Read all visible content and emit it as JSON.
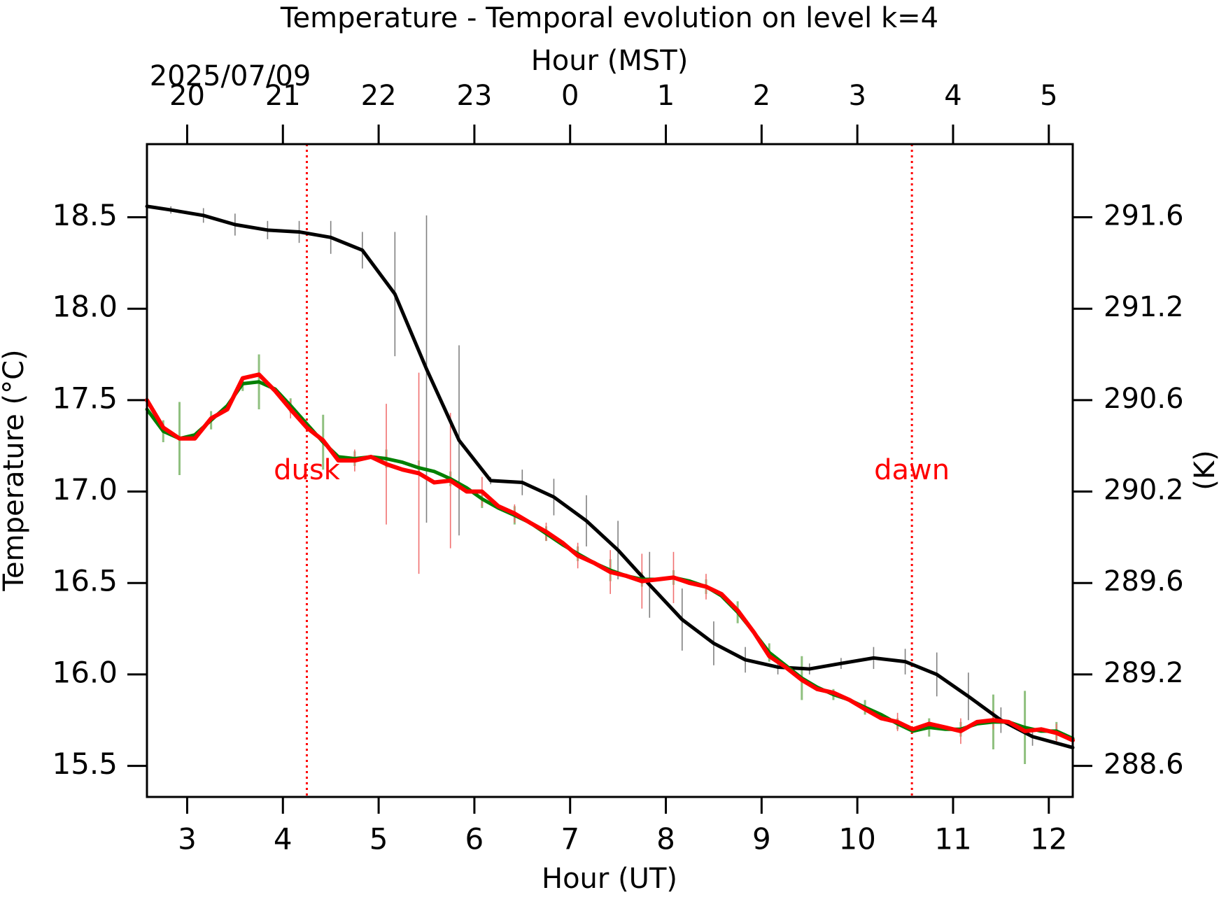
{
  "chart_data": {
    "type": "line",
    "title": "Temperature - Temporal evolution on level k=4",
    "xlabel": "Hour (UT)",
    "x2label": "Hour (MST)",
    "ylabel": "Temperature (°C)",
    "y2label": "(K)",
    "date_annotation": "2025/07/09",
    "xlim": [
      2.58,
      12.25
    ],
    "xticks": [
      3,
      4,
      5,
      6,
      7,
      8,
      9,
      10,
      11,
      12
    ],
    "x2lim": [
      19.58,
      29.25
    ],
    "x2ticks": [
      20,
      21,
      22,
      23,
      {
        "value": 24,
        "label": "0"
      },
      {
        "value": 25,
        "label": "1"
      },
      {
        "value": 26,
        "label": "2"
      },
      {
        "value": 27,
        "label": "3"
      },
      {
        "value": 28,
        "label": "4"
      },
      {
        "value": 29,
        "label": "5"
      }
    ],
    "ylim": [
      15.33,
      18.9
    ],
    "yticks": [
      15.5,
      16.0,
      16.5,
      17.0,
      17.5,
      18.0,
      18.5
    ],
    "ytick_labels": [
      "15.5",
      "16.0",
      "16.5",
      "17.0",
      "17.5",
      "18.0",
      "18.5"
    ],
    "y2lim": [
      288.48,
      292.05
    ],
    "y2ticks": [
      {
        "value": 288.65,
        "label": "288.6"
      },
      {
        "value": 289.15,
        "label": "289.2"
      },
      {
        "value": 289.65,
        "label": "289.6"
      },
      {
        "value": 290.15,
        "label": "290.2"
      },
      {
        "value": 290.65,
        "label": "290.6"
      },
      {
        "value": 291.15,
        "label": "291.2"
      },
      {
        "value": 291.65,
        "label": "291.6"
      }
    ],
    "vlines": [
      {
        "x": 4.25,
        "label": "dusk",
        "label_y": 17.11,
        "color": "#ff0000"
      },
      {
        "x": 10.57,
        "label": "dawn",
        "label_y": 17.11,
        "color": "#ff0000"
      }
    ],
    "series": [
      {
        "color": "#000000",
        "error_color": "#808080",
        "width": 5,
        "x": [
          2.58,
          2.83,
          3.17,
          3.5,
          3.84,
          4.17,
          4.5,
          4.83,
          5.17,
          5.5,
          5.84,
          6.17,
          6.5,
          6.83,
          7.17,
          7.5,
          7.83,
          8.17,
          8.5,
          8.83,
          9.17,
          9.5,
          9.83,
          10.17,
          10.5,
          10.83,
          11.16,
          11.5,
          11.83,
          12.25
        ],
        "values": [
          18.56,
          18.54,
          18.51,
          18.46,
          18.43,
          18.42,
          18.39,
          18.32,
          18.08,
          17.67,
          17.28,
          17.06,
          17.05,
          16.97,
          16.84,
          16.68,
          16.49,
          16.3,
          16.17,
          16.08,
          16.04,
          16.03,
          16.06,
          16.09,
          16.07,
          16.0,
          15.88,
          15.75,
          15.66,
          15.6
        ],
        "errors": [
          null,
          0.02,
          0.04,
          0.06,
          0.05,
          0.06,
          0.09,
          0.1,
          0.34,
          0.84,
          0.52,
          0.02,
          0.07,
          0.1,
          0.14,
          0.16,
          0.18,
          0.17,
          0.12,
          0.07,
          0.04,
          0.03,
          0.03,
          0.06,
          0.07,
          0.12,
          0.13,
          0.07,
          0.05,
          null
        ]
      },
      {
        "color": "#008000",
        "error_color": "#8fc07f",
        "width": 5,
        "x": [
          2.58,
          2.75,
          2.92,
          3.08,
          3.25,
          3.42,
          3.58,
          3.75,
          3.92,
          4.08,
          4.25,
          4.42,
          4.58,
          4.75,
          4.92,
          5.08,
          5.25,
          5.42,
          5.58,
          5.75,
          5.92,
          6.08,
          6.25,
          6.42,
          6.58,
          6.75,
          6.92,
          7.08,
          7.25,
          7.42,
          7.58,
          7.75,
          7.92,
          8.08,
          8.25,
          8.42,
          8.58,
          8.75,
          8.92,
          9.08,
          9.25,
          9.42,
          9.58,
          9.75,
          9.92,
          10.08,
          10.25,
          10.42,
          10.58,
          10.75,
          10.92,
          11.08,
          11.25,
          11.42,
          11.58,
          11.75,
          11.92,
          12.08,
          12.25
        ],
        "values": [
          17.45,
          17.33,
          17.29,
          17.31,
          17.39,
          17.47,
          17.59,
          17.6,
          17.56,
          17.47,
          17.37,
          17.27,
          17.19,
          17.18,
          17.19,
          17.18,
          17.16,
          17.13,
          17.11,
          17.07,
          17.02,
          16.96,
          16.91,
          16.87,
          16.83,
          16.77,
          16.71,
          16.66,
          16.61,
          16.57,
          16.54,
          16.52,
          16.52,
          16.53,
          16.51,
          16.48,
          16.43,
          16.34,
          16.23,
          16.12,
          16.05,
          15.98,
          15.93,
          15.89,
          15.86,
          15.82,
          15.78,
          15.73,
          15.69,
          15.71,
          15.7,
          15.7,
          15.73,
          15.74,
          15.74,
          15.71,
          15.69,
          15.69,
          15.65
        ],
        "errors": [
          null,
          0.06,
          0.2,
          null,
          0.05,
          null,
          0.04,
          0.15,
          null,
          0.04,
          null,
          0.15,
          null,
          0.04,
          null,
          0.05,
          null,
          0.04,
          null,
          0.04,
          null,
          0.05,
          null,
          0.05,
          null,
          0.04,
          null,
          0.04,
          null,
          0.06,
          null,
          0.04,
          null,
          0.04,
          null,
          0.04,
          null,
          0.06,
          null,
          0.05,
          null,
          0.12,
          null,
          0.03,
          null,
          0.04,
          null,
          0.03,
          null,
          0.05,
          null,
          0.04,
          null,
          0.15,
          null,
          0.2,
          null,
          0.05,
          null
        ]
      },
      {
        "color": "#ff0000",
        "error_color": "#f07070",
        "width": 6,
        "x": [
          2.58,
          2.75,
          2.92,
          3.08,
          3.25,
          3.42,
          3.58,
          3.75,
          3.92,
          4.08,
          4.25,
          4.42,
          4.58,
          4.75,
          4.92,
          5.08,
          5.25,
          5.42,
          5.58,
          5.75,
          5.92,
          6.08,
          6.25,
          6.42,
          6.58,
          6.75,
          6.92,
          7.08,
          7.25,
          7.42,
          7.58,
          7.75,
          7.92,
          8.08,
          8.25,
          8.42,
          8.58,
          8.75,
          8.92,
          9.08,
          9.25,
          9.42,
          9.58,
          9.75,
          9.92,
          10.08,
          10.25,
          10.42,
          10.58,
          10.75,
          10.92,
          11.08,
          11.25,
          11.42,
          11.58,
          11.75,
          11.92,
          12.08,
          12.25
        ],
        "values": [
          17.5,
          17.35,
          17.29,
          17.29,
          17.4,
          17.45,
          17.62,
          17.64,
          17.55,
          17.45,
          17.35,
          17.28,
          17.17,
          17.17,
          17.19,
          17.15,
          17.12,
          17.1,
          17.05,
          17.06,
          17.0,
          17.0,
          16.92,
          16.88,
          16.83,
          16.78,
          16.72,
          16.65,
          16.61,
          16.56,
          16.54,
          16.51,
          16.52,
          16.53,
          16.5,
          16.48,
          16.44,
          16.35,
          16.23,
          16.1,
          16.04,
          15.97,
          15.92,
          15.9,
          15.86,
          15.81,
          15.76,
          15.74,
          15.7,
          15.73,
          15.71,
          15.69,
          15.74,
          15.75,
          15.74,
          15.69,
          15.7,
          15.68,
          15.64
        ],
        "errors": [
          null,
          null,
          null,
          null,
          null,
          null,
          null,
          null,
          null,
          0.05,
          null,
          null,
          null,
          0.06,
          null,
          0.33,
          null,
          0.55,
          null,
          0.37,
          null,
          0.08,
          null,
          0.05,
          null,
          0.05,
          null,
          0.07,
          null,
          0.12,
          null,
          0.15,
          null,
          0.14,
          null,
          0.07,
          null,
          null,
          null,
          null,
          null,
          null,
          null,
          null,
          null,
          null,
          null,
          0.05,
          null,
          null,
          null,
          0.07,
          null,
          0.05,
          null,
          null,
          null,
          0.05,
          null
        ]
      }
    ]
  }
}
